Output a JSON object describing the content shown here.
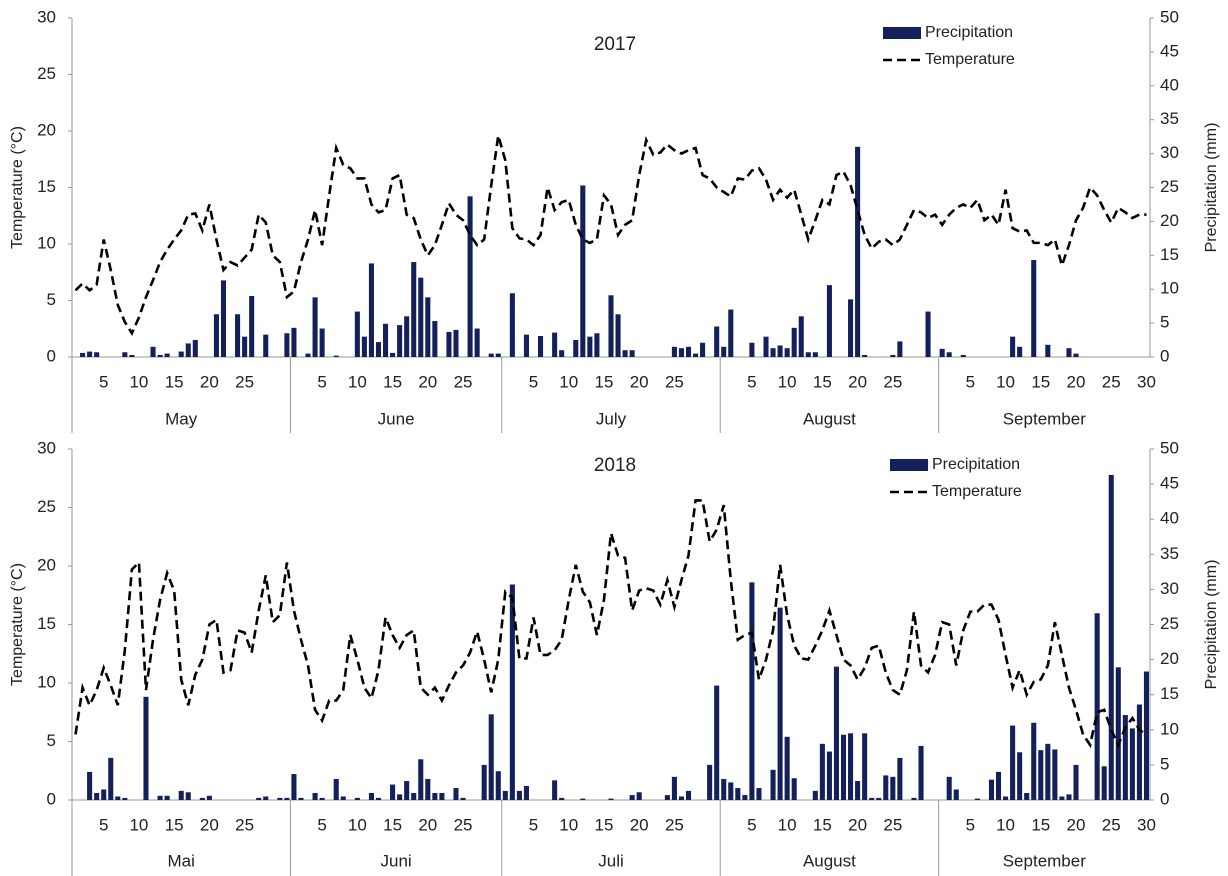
{
  "chart_data": [
    {
      "type": "combo",
      "title": "2017",
      "ylabel": "Temperature (°C)",
      "y2label": "Precipitation (mm)",
      "ylim": [
        0,
        30
      ],
      "yticks": [
        0,
        5,
        10,
        15,
        20,
        25,
        30
      ],
      "y2lim": [
        0,
        50
      ],
      "y2ticks": [
        0,
        5,
        10,
        15,
        20,
        25,
        30,
        35,
        40,
        45,
        50
      ],
      "month_groups": [
        {
          "label": "May",
          "categories": [
            null,
            null,
            null,
            null,
            5,
            null,
            null,
            null,
            null,
            10,
            null,
            null,
            null,
            null,
            15,
            null,
            null,
            null,
            null,
            20,
            null,
            null,
            null,
            null,
            25,
            null,
            null,
            null,
            null,
            null,
            null
          ]
        },
        {
          "label": "June",
          "categories": [
            null,
            null,
            null,
            null,
            5,
            null,
            null,
            null,
            null,
            10,
            null,
            null,
            null,
            null,
            15,
            null,
            null,
            null,
            null,
            20,
            null,
            null,
            null,
            null,
            25,
            null,
            null,
            null,
            null,
            null
          ]
        },
        {
          "label": "July",
          "categories": [
            null,
            null,
            null,
            null,
            5,
            null,
            null,
            null,
            null,
            10,
            null,
            null,
            null,
            null,
            15,
            null,
            null,
            null,
            null,
            20,
            null,
            null,
            null,
            null,
            25,
            null,
            null,
            null,
            null,
            null,
            null
          ]
        },
        {
          "label": "August",
          "categories": [
            null,
            null,
            null,
            null,
            5,
            null,
            null,
            null,
            null,
            10,
            null,
            null,
            null,
            null,
            15,
            null,
            null,
            null,
            null,
            20,
            null,
            null,
            null,
            null,
            25,
            null,
            null,
            null,
            null,
            null,
            null
          ]
        },
        {
          "label": "September",
          "categories": [
            null,
            null,
            null,
            null,
            5,
            null,
            null,
            null,
            null,
            10,
            null,
            null,
            null,
            null,
            15,
            null,
            null,
            null,
            null,
            20,
            null,
            null,
            null,
            null,
            25,
            null,
            null,
            null,
            null,
            30
          ]
        }
      ],
      "series": [
        {
          "name": "Precipitation",
          "type": "bar",
          "axis": "y2",
          "color": "#14205a",
          "values": [
            0,
            0.6,
            0.8,
            0.7,
            0,
            0,
            0,
            0.7,
            0.3,
            0,
            0,
            1.5,
            0.3,
            0.5,
            0,
            0.8,
            2,
            2.5,
            0,
            0,
            6.3,
            11.3,
            0,
            6.3,
            3,
            9,
            0,
            3.3,
            0,
            0,
            3.5,
            4.3,
            0,
            0.5,
            8.8,
            4.2,
            0,
            0.2,
            0,
            0,
            6.7,
            3,
            13.8,
            2.2,
            4.9,
            0.6,
            4.7,
            6,
            14,
            11.7,
            8.8,
            5.3,
            0,
            3.7,
            4,
            0,
            23.7,
            4.2,
            0,
            0.5,
            0.5,
            0,
            9.4,
            0,
            3.3,
            0,
            3.1,
            0,
            3.6,
            1,
            0,
            2.5,
            25.3,
            3,
            3.5,
            0,
            9.1,
            6.3,
            1,
            1,
            0,
            0,
            0,
            0,
            0,
            1.5,
            1.3,
            1.5,
            0.5,
            2.1,
            0,
            4.5,
            1.5,
            7,
            0,
            0,
            2.1,
            0,
            3,
            1.3,
            1.7,
            1.3,
            4.3,
            6,
            0.7,
            0.7,
            0,
            10.6,
            0,
            0,
            8.5,
            31,
            0.3,
            0,
            0,
            0,
            0.3,
            2.3,
            0,
            0,
            0,
            6.7,
            0,
            1.2,
            0.7,
            0,
            0.3,
            0,
            0,
            0,
            0,
            0,
            0,
            3,
            1.5,
            0,
            14.3,
            0,
            1.8,
            0,
            0,
            1.3,
            0.5,
            0,
            0,
            0,
            0,
            0,
            0,
            0,
            0,
            0,
            0
          ]
        },
        {
          "name": "Temperature",
          "type": "line",
          "line_style": "dashed",
          "color": "#000000",
          "values": [
            5.9,
            6.5,
            5.9,
            6.4,
            10.4,
            7.7,
            4.6,
            3.1,
            2.1,
            3.5,
            5.3,
            6.8,
            8.4,
            9.5,
            10.4,
            11.2,
            12.6,
            12.7,
            11.2,
            13.5,
            10.4,
            7.7,
            8.4,
            8.1,
            8.8,
            9.5,
            12.6,
            11.9,
            9,
            8.4,
            5.3,
            5.8,
            8.4,
            10.4,
            13,
            9.9,
            14.3,
            18.5,
            17,
            16.7,
            15.8,
            15.8,
            13.5,
            12.8,
            13,
            15.8,
            16.1,
            12.6,
            12.3,
            10.4,
            9,
            9.9,
            11.7,
            13.6,
            12.6,
            12.1,
            10.8,
            9.9,
            10.4,
            15.2,
            19.6,
            17.4,
            11.4,
            10.5,
            10.4,
            9.9,
            10.8,
            15,
            13,
            13.7,
            13.9,
            11.7,
            10.4,
            10.1,
            10.4,
            14.3,
            13.5,
            10.8,
            11.7,
            12.1,
            16.1,
            19.2,
            17.9,
            18.1,
            18.8,
            18.3,
            18,
            18.3,
            18.5,
            16.1,
            15.8,
            15,
            14.6,
            14.2,
            15.8,
            15.7,
            16.5,
            16.7,
            15.7,
            13.9,
            14.8,
            14.1,
            14.8,
            12.6,
            10.4,
            12.1,
            13.9,
            13.5,
            16.1,
            16.4,
            15.2,
            13,
            10.8,
            9.6,
            10.2,
            10.4,
            9.9,
            10.4,
            11.7,
            13,
            12.8,
            12.3,
            12.6,
            11.7,
            12.6,
            13.2,
            13.5,
            13.2,
            13.9,
            12.1,
            12.6,
            11.7,
            14.8,
            11.4,
            11.1,
            11.2,
            10.1,
            10.1,
            9.9,
            10.4,
            8.1,
            9.9,
            12.1,
            13.2,
            15,
            14.3,
            13,
            11.9,
            13.2,
            12.8,
            12.3,
            12.6,
            12.6
          ]
        }
      ]
    },
    {
      "type": "combo",
      "title": "2018",
      "ylabel": "Temperature (°C)",
      "y2label": "Precipitation (mm)",
      "ylim": [
        0,
        30
      ],
      "yticks": [
        0,
        5,
        10,
        15,
        20,
        25,
        30
      ],
      "y2lim": [
        0,
        50
      ],
      "y2ticks": [
        0,
        5,
        10,
        15,
        20,
        25,
        30,
        35,
        40,
        45,
        50
      ],
      "month_groups": [
        {
          "label": "Mai",
          "categories": [
            null,
            null,
            null,
            null,
            5,
            null,
            null,
            null,
            null,
            10,
            null,
            null,
            null,
            null,
            15,
            null,
            null,
            null,
            null,
            20,
            null,
            null,
            null,
            null,
            25,
            null,
            null,
            null,
            null,
            null,
            null
          ]
        },
        {
          "label": "Juni",
          "categories": [
            null,
            null,
            null,
            null,
            5,
            null,
            null,
            null,
            null,
            10,
            null,
            null,
            null,
            null,
            15,
            null,
            null,
            null,
            null,
            20,
            null,
            null,
            null,
            null,
            25,
            null,
            null,
            null,
            null,
            null
          ]
        },
        {
          "label": "Juli",
          "categories": [
            null,
            null,
            null,
            null,
            5,
            null,
            null,
            null,
            null,
            10,
            null,
            null,
            null,
            null,
            15,
            null,
            null,
            null,
            null,
            20,
            null,
            null,
            null,
            null,
            25,
            null,
            null,
            null,
            null,
            null,
            null
          ]
        },
        {
          "label": "August",
          "categories": [
            null,
            null,
            null,
            null,
            5,
            null,
            null,
            null,
            null,
            10,
            null,
            null,
            null,
            null,
            15,
            null,
            null,
            null,
            null,
            20,
            null,
            null,
            null,
            null,
            25,
            null,
            null,
            null,
            null,
            null,
            null
          ]
        },
        {
          "label": "September",
          "categories": [
            null,
            null,
            null,
            null,
            5,
            null,
            null,
            null,
            null,
            10,
            null,
            null,
            null,
            null,
            15,
            null,
            null,
            null,
            null,
            20,
            null,
            null,
            null,
            null,
            25,
            null,
            null,
            null,
            null,
            30
          ]
        }
      ],
      "series": [
        {
          "name": "Precipitation",
          "type": "bar",
          "axis": "y2",
          "color": "#14205a",
          "values": [
            0,
            0,
            4,
            1,
            1.5,
            6,
            0.5,
            0.3,
            0,
            0,
            14.7,
            0,
            0.6,
            0.6,
            0,
            1.3,
            1.1,
            0,
            0.3,
            0.6,
            0,
            0,
            0,
            0,
            0,
            0,
            0.3,
            0.5,
            0,
            0.3,
            0.3,
            3.7,
            0.3,
            0,
            1,
            0.3,
            0,
            3,
            0.5,
            0,
            0.3,
            0,
            1,
            0.3,
            0,
            2.2,
            0.8,
            2.7,
            1,
            5.8,
            3,
            1,
            1,
            0,
            1.7,
            0.3,
            0,
            0,
            5,
            12.2,
            4.1,
            1.3,
            30.7,
            1.3,
            2,
            0,
            0,
            0,
            2.8,
            0.3,
            0,
            0,
            0.2,
            0,
            0,
            0,
            0.2,
            0,
            0,
            0.7,
            1.1,
            0,
            0,
            0,
            0.7,
            3.3,
            0.5,
            1.3,
            0,
            0,
            5,
            16.3,
            3,
            2.5,
            1.7,
            0.7,
            31,
            1.7,
            0,
            4.3,
            27.4,
            9,
            3.1,
            0,
            0,
            1.3,
            8,
            6.9,
            19,
            9.3,
            9.5,
            2.7,
            9.5,
            0.3,
            0.3,
            3.5,
            3.3,
            6,
            0,
            0.3,
            7.7,
            0,
            0,
            0,
            3.3,
            1.5,
            0,
            0,
            0.2,
            0,
            2.9,
            4,
            0.5,
            10.6,
            6.8,
            1,
            11,
            7.1,
            8,
            7.2,
            0.5,
            0.8,
            5,
            0,
            0,
            26.6,
            4.8,
            46.3,
            18.9,
            12.1,
            10.2,
            13.6,
            18.3
          ]
        },
        {
          "name": "Temperature",
          "type": "line",
          "line_style": "dashed",
          "color": "#000000",
          "values": [
            5.6,
            9.6,
            8.1,
            9.4,
            11.3,
            9.8,
            8.1,
            12.8,
            19.7,
            20.3,
            9.4,
            13.7,
            17.1,
            19.4,
            17.9,
            10.3,
            8.1,
            10.7,
            12,
            15,
            15.4,
            10.9,
            11.1,
            14.5,
            14.3,
            12.6,
            16.2,
            19.2,
            15.2,
            15.8,
            20.3,
            16.2,
            13.7,
            11.5,
            7.7,
            6.8,
            8.5,
            8.5,
            9.4,
            14.1,
            12,
            9.6,
            8.7,
            11.1,
            15.6,
            14.1,
            13,
            14.1,
            14.5,
            9.6,
            9,
            9.6,
            8.5,
            9.8,
            10.9,
            11.5,
            12.6,
            14.4,
            12,
            9.2,
            12,
            17.8,
            17.3,
            12.1,
            12.1,
            15.6,
            12.4,
            12.4,
            12.8,
            13.7,
            17.1,
            20.1,
            17.8,
            16.9,
            14.1,
            17.1,
            22.8,
            20.9,
            20.7,
            16.2,
            17.9,
            18.1,
            17.9,
            16.7,
            18.8,
            16.5,
            18.8,
            20.9,
            25.6,
            25.6,
            22.1,
            23.1,
            25.2,
            18.8,
            13.7,
            14.1,
            14.3,
            10.3,
            12,
            14.5,
            20.1,
            15.8,
            13.2,
            12.1,
            12,
            13.2,
            14.5,
            16.2,
            14.1,
            12,
            11.5,
            10.3,
            11.3,
            13,
            13.2,
            10.9,
            9.4,
            9,
            11.1,
            16.1,
            11.5,
            10.9,
            12.4,
            15.2,
            15,
            11.5,
            14.5,
            16.1,
            16.1,
            16.7,
            16.7,
            15.4,
            12.4,
            9.6,
            11.1,
            9,
            10.1,
            10.3,
            11.5,
            15.2,
            12.4,
            9.6,
            7.7,
            5.6,
            4.7,
            7.5,
            7.7,
            6,
            4.7,
            6.2,
            7,
            6,
            5.6
          ]
        }
      ]
    }
  ]
}
